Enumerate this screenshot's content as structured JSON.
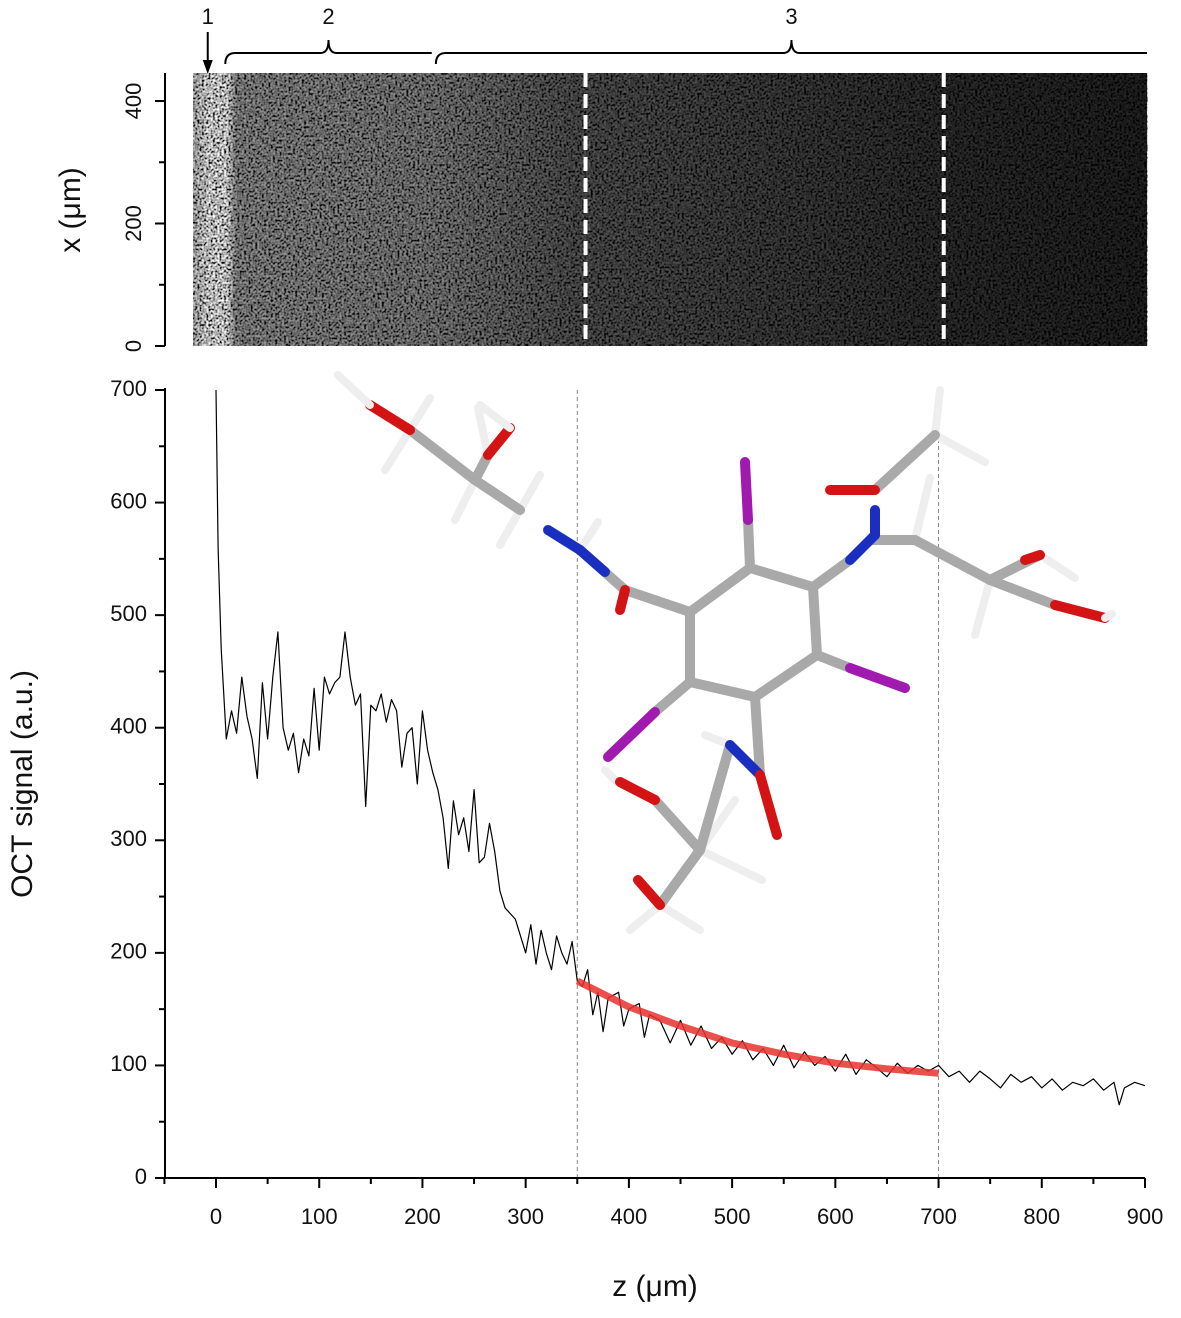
{
  "chart_data": [
    {
      "type": "image",
      "ylabel": "x (μm)",
      "xlim": [
        -50,
        900
      ],
      "ylim": [
        0,
        450
      ],
      "yticks": [
        0,
        200,
        400
      ],
      "yticks_minor": [
        100,
        300
      ],
      "extent": [
        -22,
        902
      ],
      "markers": [
        358,
        705
      ],
      "regions": [
        {
          "label": "1",
          "z": [
            -8
          ]
        },
        {
          "label": "2",
          "z": [
            9,
            209
          ]
        },
        {
          "label": "3",
          "z": [
            213,
            902
          ]
        }
      ]
    },
    {
      "type": "line",
      "xlabel": "z (μm)",
      "ylabel": "OCT signal (a.u.)",
      "xlim": [
        -50,
        900
      ],
      "ylim": [
        0,
        700
      ],
      "xticks": [
        0,
        100,
        200,
        300,
        400,
        500,
        600,
        700,
        800,
        900
      ],
      "xticks_minor": [
        -50,
        50,
        150,
        250,
        350,
        450,
        550,
        650,
        750,
        850
      ],
      "yticks": [
        0,
        100,
        200,
        300,
        400,
        500,
        600,
        700
      ],
      "yticks_minor": [
        50,
        150,
        250,
        350,
        450,
        550,
        650
      ],
      "markers": [
        350,
        700
      ],
      "series": [
        {
          "color": "#000000",
          "width": 1.2,
          "x": [
            0,
            2,
            5,
            10,
            15,
            20,
            25,
            30,
            35,
            40,
            45,
            50,
            55,
            60,
            65,
            70,
            75,
            80,
            85,
            90,
            95,
            100,
            105,
            110,
            115,
            120,
            125,
            130,
            135,
            140,
            145,
            150,
            155,
            160,
            165,
            170,
            175,
            180,
            185,
            190,
            195,
            200,
            205,
            210,
            215,
            220,
            225,
            230,
            235,
            240,
            245,
            250,
            255,
            260,
            265,
            270,
            275,
            280,
            290,
            300,
            305,
            310,
            315,
            320,
            325,
            330,
            335,
            340,
            345,
            350,
            355,
            360,
            365,
            370,
            375,
            380,
            390,
            395,
            400,
            410,
            415,
            420,
            430,
            440,
            450,
            460,
            470,
            480,
            490,
            500,
            510,
            520,
            530,
            540,
            550,
            560,
            570,
            580,
            590,
            600,
            610,
            620,
            630,
            640,
            650,
            660,
            670,
            680,
            690,
            700,
            710,
            720,
            730,
            740,
            750,
            760,
            770,
            780,
            790,
            800,
            810,
            820,
            830,
            840,
            850,
            860,
            870,
            875,
            880,
            890,
            900
          ],
          "values": [
            700,
            560,
            470,
            390,
            415,
            395,
            445,
            410,
            390,
            355,
            440,
            390,
            445,
            485,
            400,
            380,
            395,
            360,
            390,
            375,
            435,
            380,
            445,
            430,
            440,
            445,
            485,
            445,
            420,
            430,
            330,
            420,
            415,
            430,
            405,
            425,
            415,
            365,
            395,
            400,
            350,
            415,
            380,
            360,
            345,
            320,
            275,
            335,
            305,
            320,
            290,
            345,
            280,
            285,
            315,
            290,
            255,
            240,
            230,
            200,
            225,
            190,
            220,
            200,
            185,
            215,
            200,
            190,
            210,
            175,
            170,
            185,
            145,
            165,
            130,
            160,
            165,
            135,
            150,
            155,
            125,
            145,
            140,
            120,
            140,
            118,
            135,
            115,
            125,
            110,
            122,
            105,
            115,
            100,
            118,
            98,
            112,
            100,
            108,
            95,
            110,
            92,
            105,
            98,
            90,
            102,
            93,
            100,
            95,
            100,
            90,
            95,
            85,
            95,
            88,
            80,
            92,
            85,
            90,
            80,
            88,
            78,
            85,
            82,
            88,
            78,
            85,
            65,
            80,
            85,
            82
          ]
        },
        {
          "color": "#e8312e",
          "width": 7,
          "x": [
            350,
            400,
            450,
            500,
            550,
            600,
            650,
            700
          ],
          "values": [
            175,
            152,
            135,
            120,
            110,
            102,
            97,
            93
          ]
        }
      ]
    }
  ]
}
